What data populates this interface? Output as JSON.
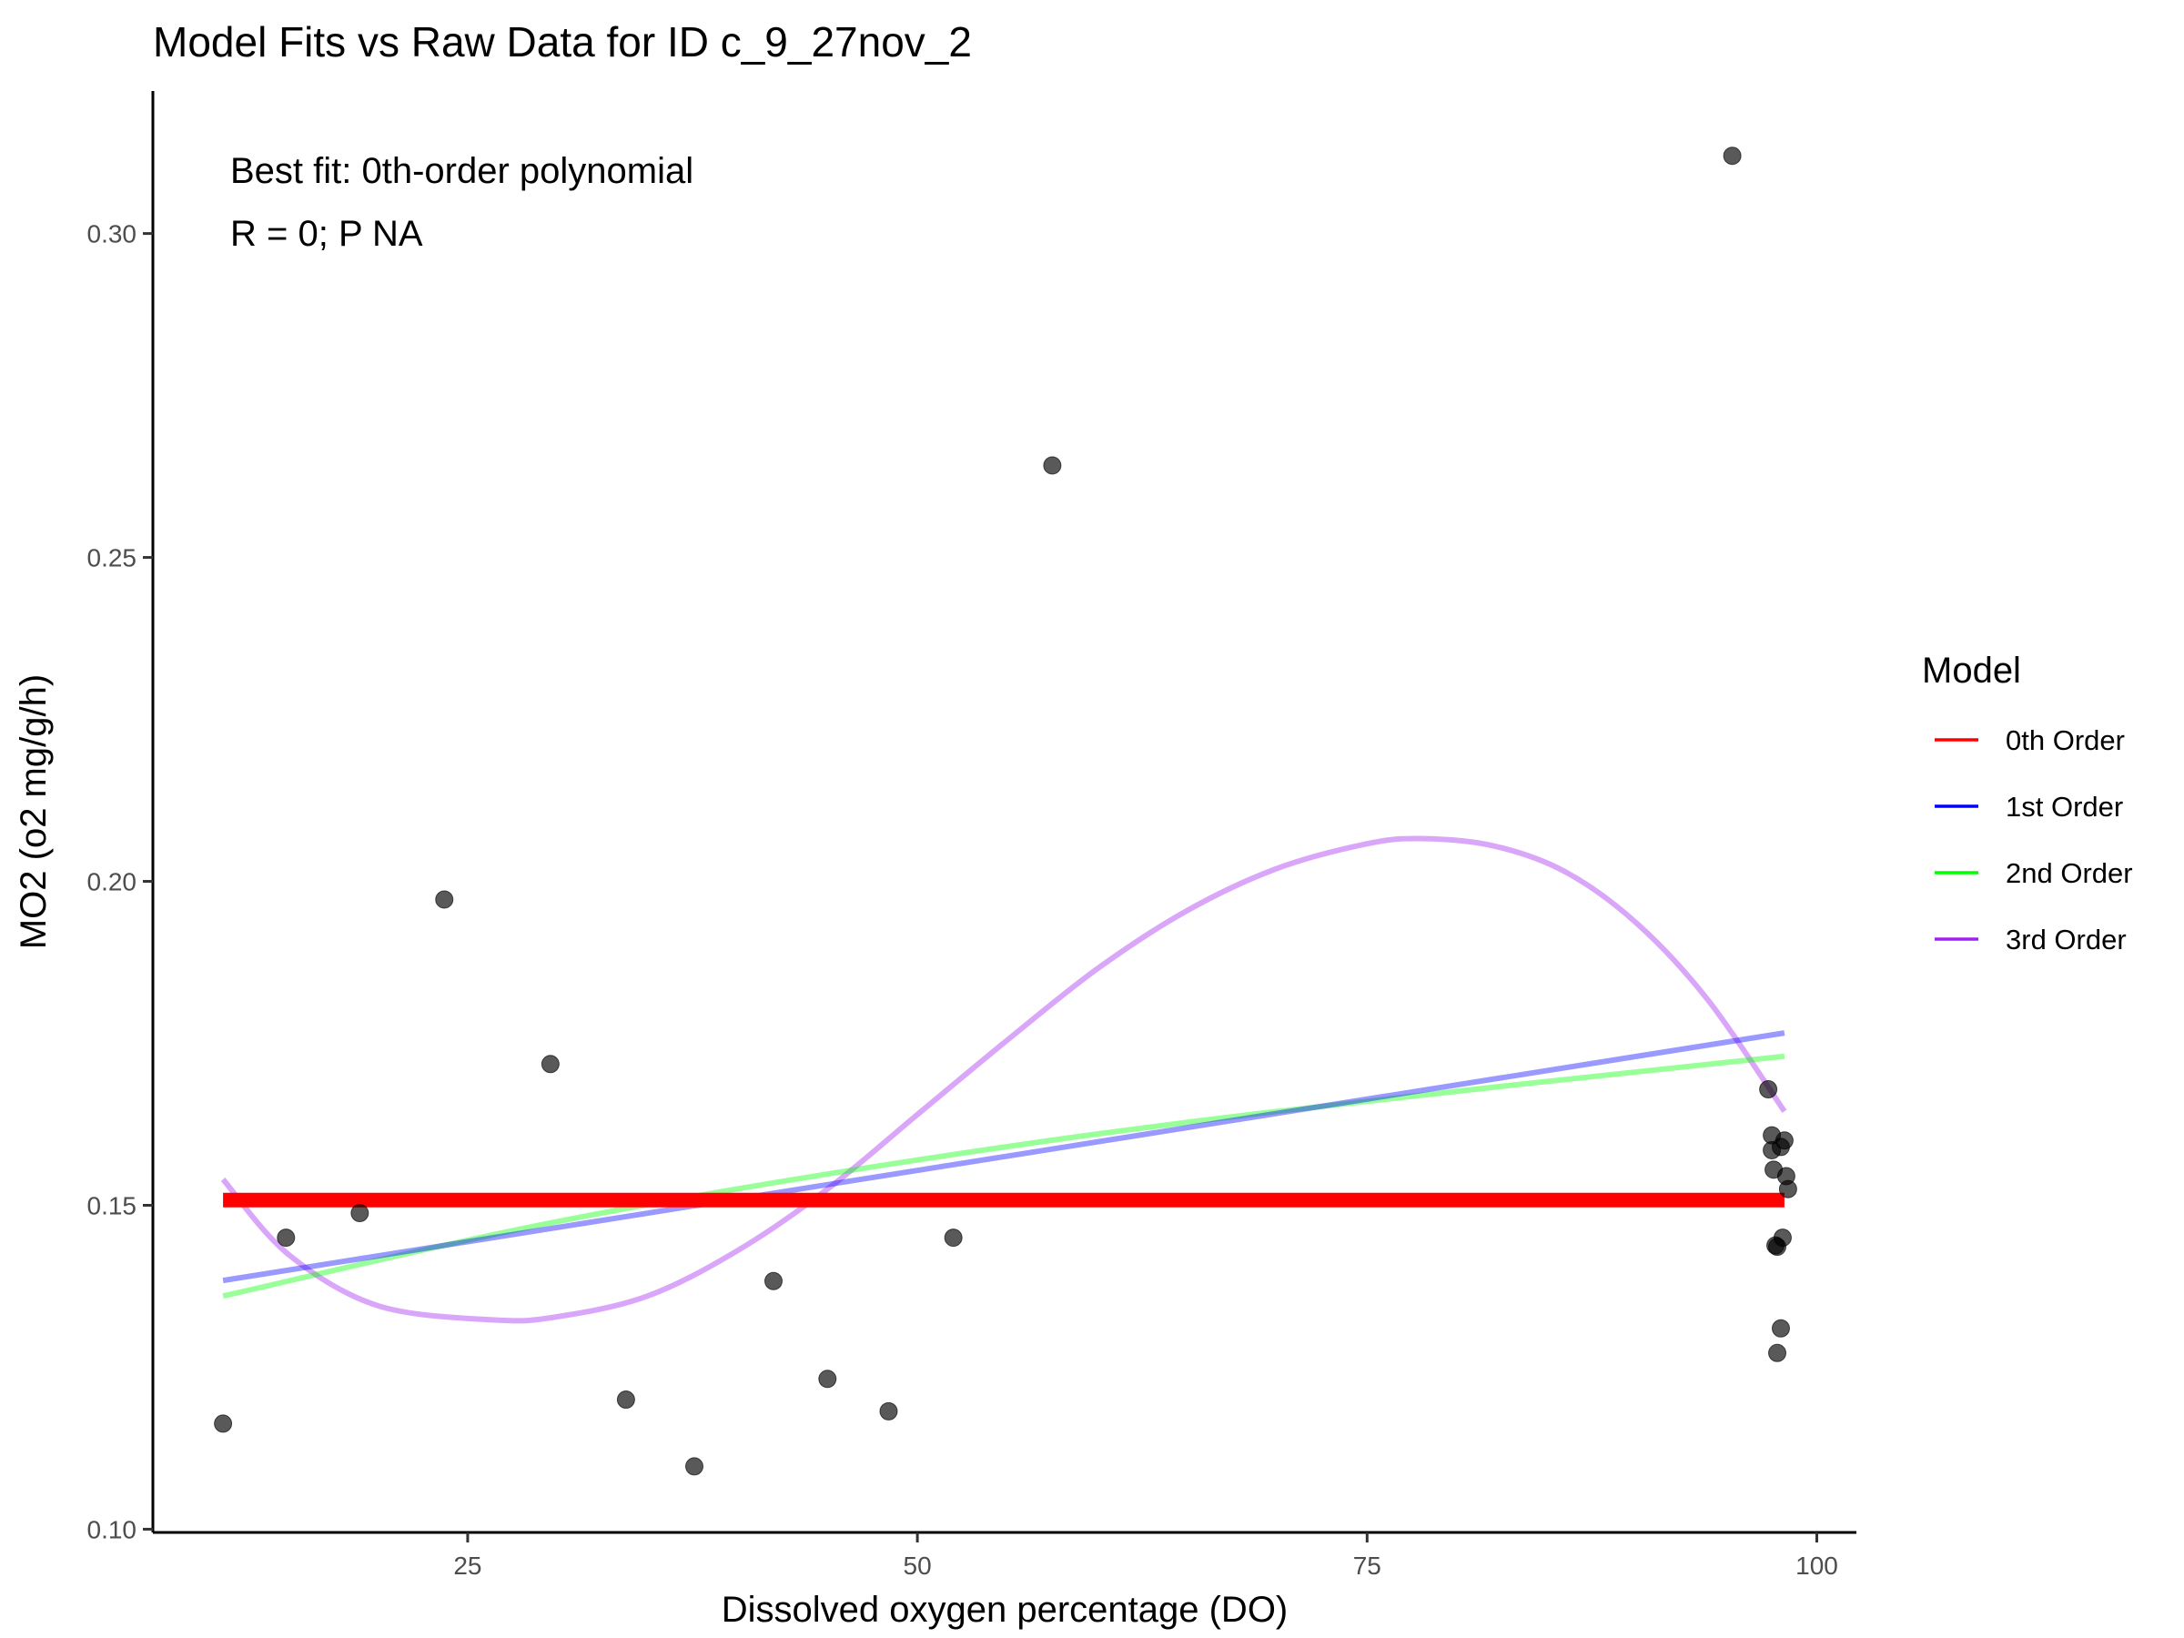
{
  "chart_data": {
    "type": "scatter",
    "title": "Model Fits vs Raw Data for ID c_9_27nov_2",
    "xlabel": "Dissolved oxygen percentage (DO)",
    "ylabel": "MO2 (o2 mg/g/h)",
    "xlim": [
      7.5,
      102.2
    ],
    "ylim": [
      0.0995,
      0.322
    ],
    "x_ticks": [
      25,
      50,
      75,
      100
    ],
    "y_ticks": [
      0.1,
      0.15,
      0.2,
      0.25,
      0.3
    ],
    "x_tick_labels": [
      "25",
      "50",
      "75",
      "100"
    ],
    "y_tick_labels": [
      "0.10",
      "0.15",
      "0.20",
      "0.25",
      "0.30"
    ],
    "grid": false,
    "annotations": [
      "Best fit: 0th-order polynomial",
      "R = 0; P NA"
    ],
    "points": {
      "color": "#000000",
      "opacity": 0.65,
      "x": [
        11.4,
        14.9,
        19.0,
        23.7,
        29.6,
        33.8,
        37.6,
        42.0,
        45.0,
        48.4,
        52.0,
        57.5,
        95.3,
        97.3,
        97.5,
        97.5,
        97.6,
        97.7,
        97.8,
        98.0,
        98.1,
        98.2,
        98.3,
        98.4,
        98.0,
        97.8
      ],
      "y": [
        0.1163,
        0.145,
        0.1488,
        0.1972,
        0.1718,
        0.12,
        0.1097,
        0.1383,
        0.1232,
        0.1182,
        0.145,
        0.2642,
        0.312,
        0.1679,
        0.1585,
        0.1608,
        0.1555,
        0.1438,
        0.1272,
        0.131,
        0.145,
        0.16,
        0.1545,
        0.1525,
        0.159,
        0.1436
      ]
    },
    "legend": {
      "title": "Model",
      "position": "right",
      "entries": [
        {
          "name": "0th Order",
          "color": "#ff0000"
        },
        {
          "name": "1st Order",
          "color": "#0000ff"
        },
        {
          "name": "2nd Order",
          "color": "#00ff00"
        },
        {
          "name": "3rd Order",
          "color": "#a020f0"
        }
      ]
    },
    "series": [
      {
        "name": "0th Order",
        "color": "#ff0000",
        "opacity": 1.0,
        "x": [
          11.4,
          98.2
        ],
        "y": [
          0.1508,
          0.1508
        ]
      },
      {
        "name": "1st Order",
        "color": "#0000ff",
        "opacity": 0.4,
        "x": [
          11.4,
          98.2
        ],
        "y": [
          0.1384,
          0.1766
        ]
      },
      {
        "name": "2nd Order",
        "color": "#00ff00",
        "opacity": 0.4,
        "x": [
          11.4,
          30,
          50,
          70,
          98.2
        ],
        "y": [
          0.136,
          0.1475,
          0.157,
          0.1645,
          0.173
        ]
      },
      {
        "name": "3rd Order",
        "color": "#a020f0",
        "opacity": 0.4,
        "x": [
          11.4,
          15,
          20,
          26.5,
          30,
          35,
          40,
          45,
          50,
          55,
          60,
          65,
          70,
          75,
          78,
          82,
          86,
          90,
          94,
          98.2
        ],
        "y": [
          0.154,
          0.1425,
          0.1345,
          0.1323,
          0.1328,
          0.136,
          0.143,
          0.1525,
          0.164,
          0.1755,
          0.1865,
          0.1955,
          0.202,
          0.2058,
          0.2066,
          0.2055,
          0.2015,
          0.1935,
          0.1815,
          0.1645
        ]
      }
    ]
  }
}
